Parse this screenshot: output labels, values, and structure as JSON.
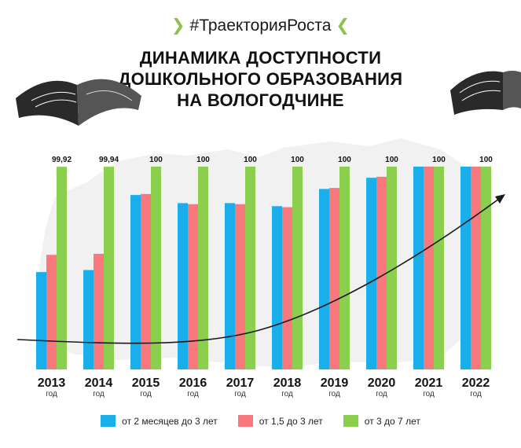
{
  "header": {
    "hashtag": "#ТраекторияРоста",
    "chevron_left": "❯",
    "chevron_right": "❮",
    "title_lines": [
      "ДИНАМИКА ДОСТУПНОСТИ",
      "ДОШКОЛЬНОГО ОБРАЗОВАНИЯ",
      "НА ВОЛОГОДЧИНЕ"
    ]
  },
  "colors": {
    "series1": "#1aaeea",
    "series2": "#f7797d",
    "series3": "#8ccf4e",
    "accent_green": "#8bc34a",
    "map_bg": "#f1f1f1"
  },
  "chart_data": {
    "type": "bar",
    "categories": [
      "2013",
      "2014",
      "2015",
      "2016",
      "2017",
      "2018",
      "2019",
      "2020",
      "2021",
      "2022"
    ],
    "category_sublabel": "год",
    "ylim": [
      0,
      100
    ],
    "series": [
      {
        "name": "от 2 месяцев до 3 лет",
        "values": [
          48,
          49,
          86,
          82,
          82,
          80.5,
          89,
          94.5,
          100,
          100
        ]
      },
      {
        "name": "от 1,5 до 3 лет",
        "values": [
          56.5,
          57,
          86.5,
          81.5,
          81.5,
          80,
          89.5,
          95,
          100,
          100
        ]
      },
      {
        "name": "от 3 до 7 лет",
        "values": [
          99.92,
          99.94,
          100,
          100,
          100,
          100,
          100,
          100,
          100,
          100
        ],
        "labels": [
          "99,92",
          "99,94",
          "100",
          "100",
          "100",
          "100",
          "100",
          "100",
          "100",
          "100"
        ]
      }
    ],
    "grid": false,
    "legend_position": "bottom",
    "trend_arrow": true
  }
}
